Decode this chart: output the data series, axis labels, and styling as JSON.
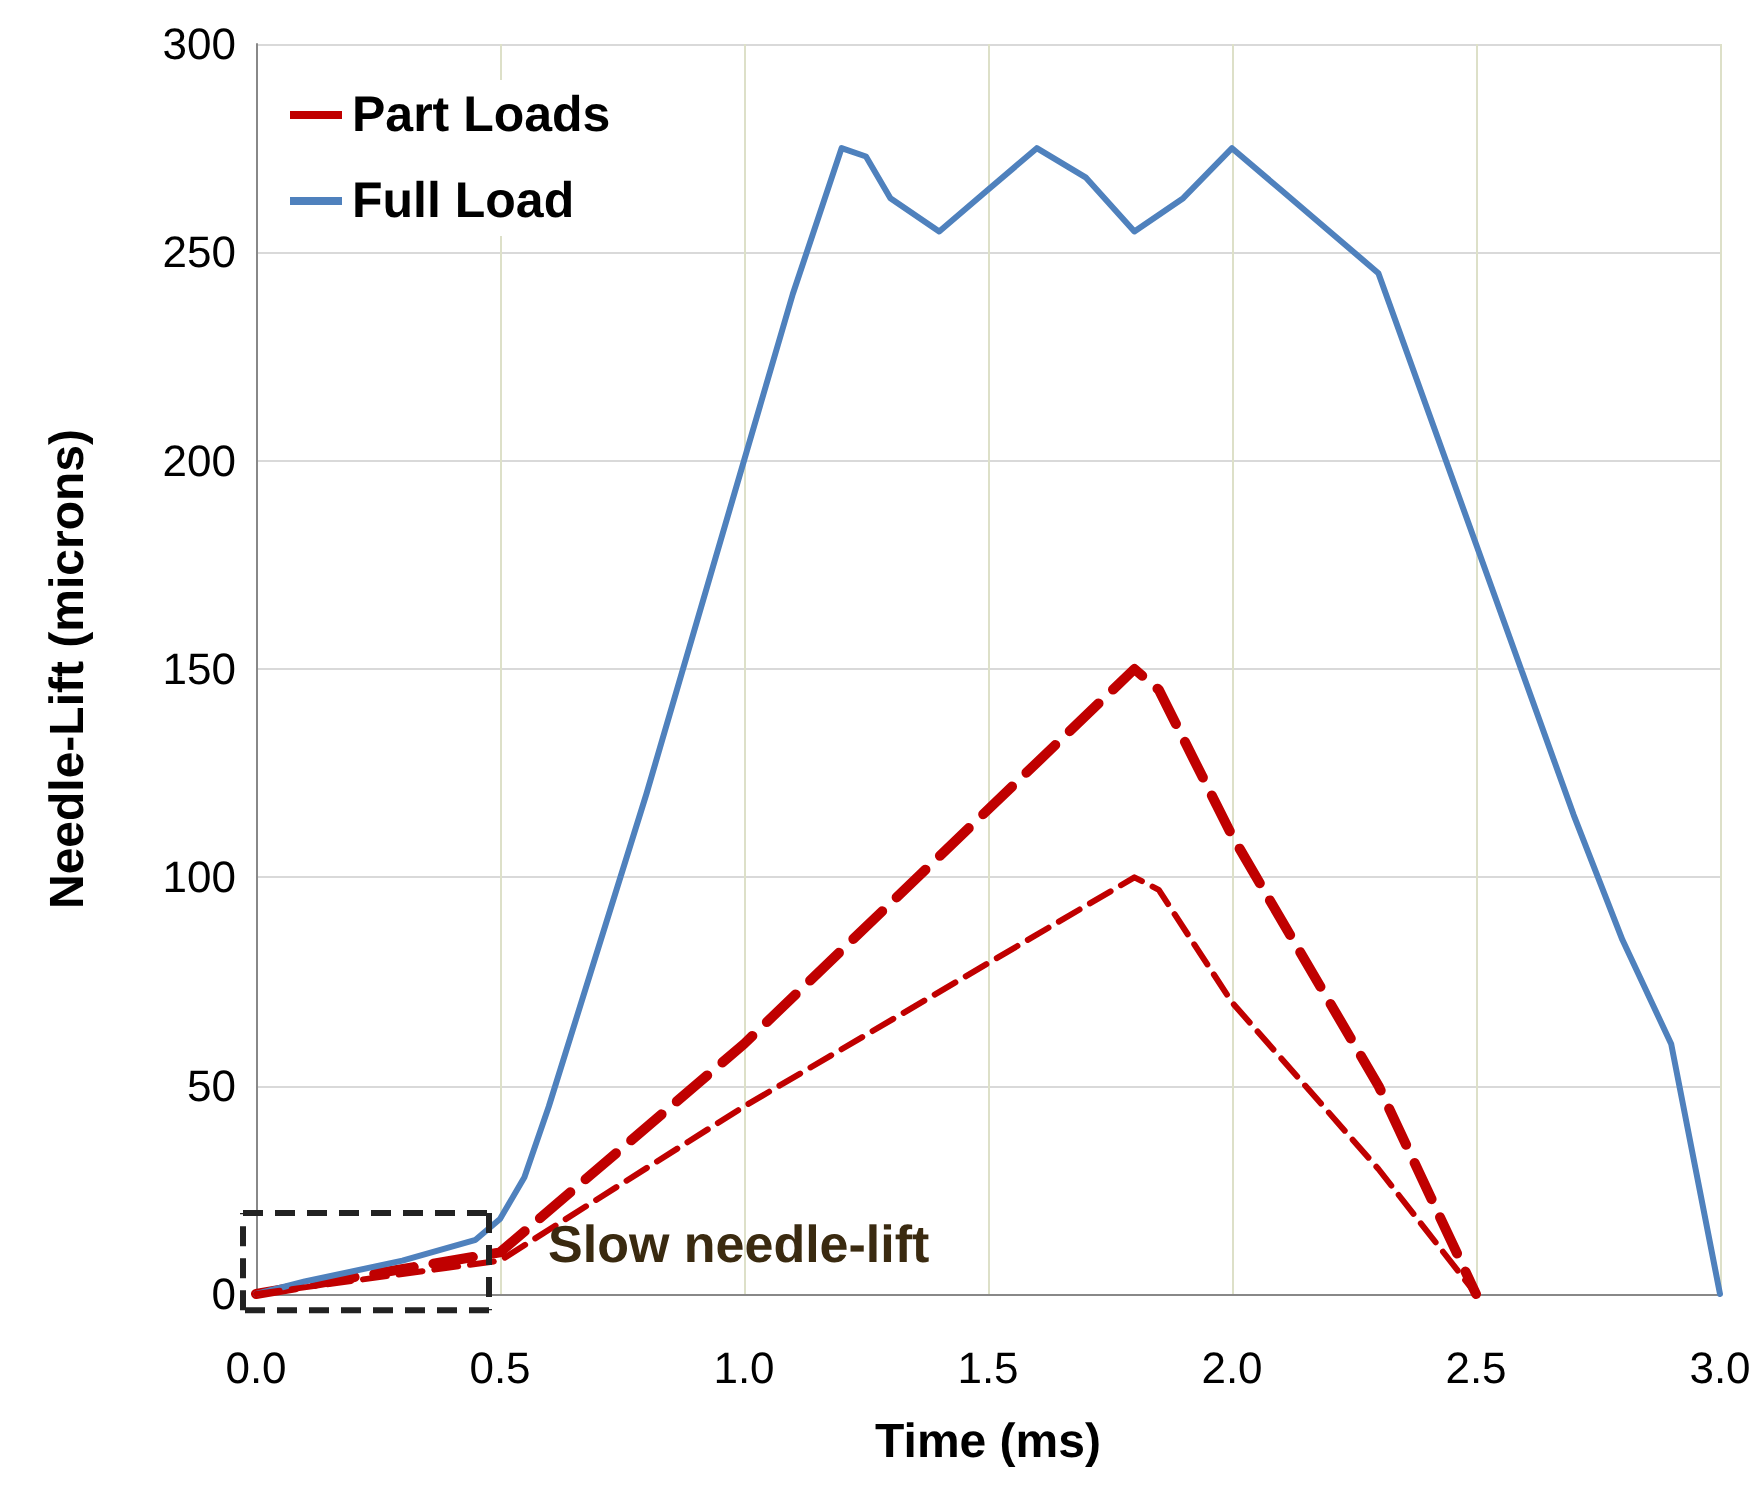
{
  "chart_data": {
    "type": "line",
    "xlabel": "Time (ms)",
    "ylabel": "Needle-Lift (microns)",
    "xlim": [
      0,
      3
    ],
    "xticks": [
      {
        "value": 0,
        "label": "0.0"
      },
      {
        "value": 0.5,
        "label": "0.5"
      },
      {
        "value": 1,
        "label": "1.0"
      },
      {
        "value": 1.5,
        "label": "1.5"
      },
      {
        "value": 2,
        "label": "2.0"
      },
      {
        "value": 2.5,
        "label": "2.5"
      },
      {
        "value": 3,
        "label": "3.0"
      }
    ],
    "ylim": [
      0,
      300
    ],
    "yticks": [
      0,
      50,
      100,
      150,
      200,
      250,
      300
    ],
    "grid": true,
    "legend": "top left",
    "marker": "none",
    "annotations": [
      "Slow needle-lift"
    ],
    "series": [
      {
        "name": "Part Loads",
        "color": "#c00000",
        "line_style": "dashed",
        "x": [
          0,
          0.5,
          1.0,
          1.8,
          1.85,
          2.0,
          2.3,
          2.5
        ],
        "values": [
          0,
          10,
          60,
          150,
          145,
          110,
          50,
          0
        ]
      },
      {
        "name": "Full Load",
        "color": "#4f81bd",
        "line_style": "solid",
        "x": [
          0,
          0.1,
          0.3,
          0.45,
          0.5,
          0.55,
          0.6,
          0.8,
          1.0,
          1.1,
          1.2,
          1.25,
          1.3,
          1.4,
          1.5,
          1.6,
          1.7,
          1.8,
          1.9,
          2.0,
          2.1,
          2.2,
          2.3,
          2.5,
          2.7,
          2.8,
          2.9,
          2.95,
          3.0
        ],
        "values": [
          0,
          3,
          8,
          13,
          18,
          28,
          45,
          120,
          200,
          240,
          275,
          273,
          263,
          255,
          265,
          275,
          268,
          255,
          263,
          275,
          265,
          255,
          245,
          180,
          115,
          85,
          60,
          30,
          0
        ]
      },
      {
        "color": "#c00000",
        "line_style": "dashed",
        "x": [
          0,
          0.5,
          1.0,
          1.8,
          1.85,
          2.0,
          2.3,
          2.5
        ],
        "values": [
          0,
          8,
          45,
          100,
          97,
          70,
          30,
          0
        ]
      }
    ]
  }
}
